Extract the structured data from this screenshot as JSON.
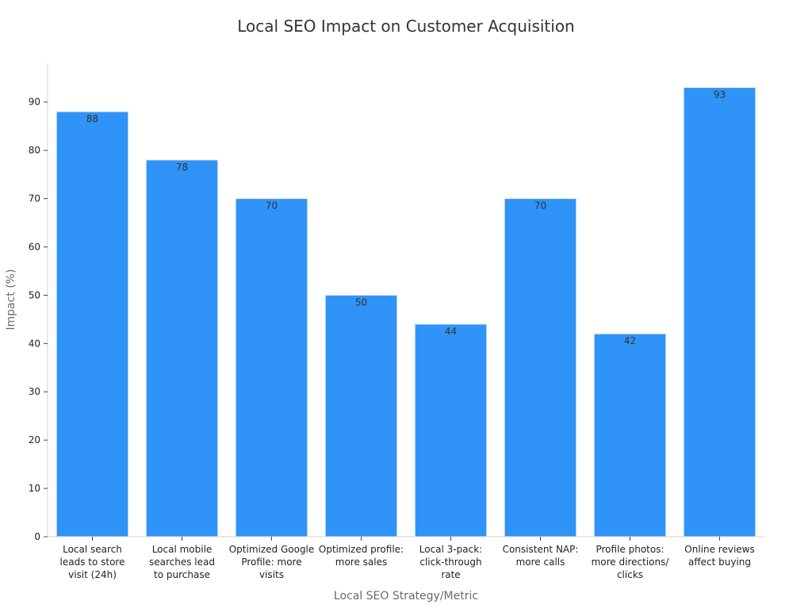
{
  "chart_data": {
    "type": "bar",
    "title": "Local SEO Impact on Customer Acquisition",
    "xlabel": "Local SEO Strategy/Metric",
    "ylabel": "Impact (%)",
    "ylim": [
      0,
      98
    ],
    "yticks": [
      0,
      10,
      20,
      30,
      40,
      50,
      60,
      70,
      80,
      90
    ],
    "grid": false,
    "categories": [
      [
        "Local search",
        "leads to store",
        "visit (24h)"
      ],
      [
        "Local mobile",
        "searches lead",
        "to purchase"
      ],
      [
        "Optimized Google",
        "Profile: more",
        "visits"
      ],
      [
        "Optimized profile:",
        "more sales"
      ],
      [
        "Local 3-pack:",
        "click-through",
        "rate"
      ],
      [
        "Consistent NAP:",
        "more calls"
      ],
      [
        "Profile photos:",
        "more directions/",
        "clicks"
      ],
      [
        "Online reviews",
        "affect buying"
      ]
    ],
    "values": [
      88,
      78,
      70,
      50,
      44,
      70,
      42,
      93
    ],
    "bar_color": "#2f93f7",
    "bar_edge_color": "#d6e6f5"
  }
}
